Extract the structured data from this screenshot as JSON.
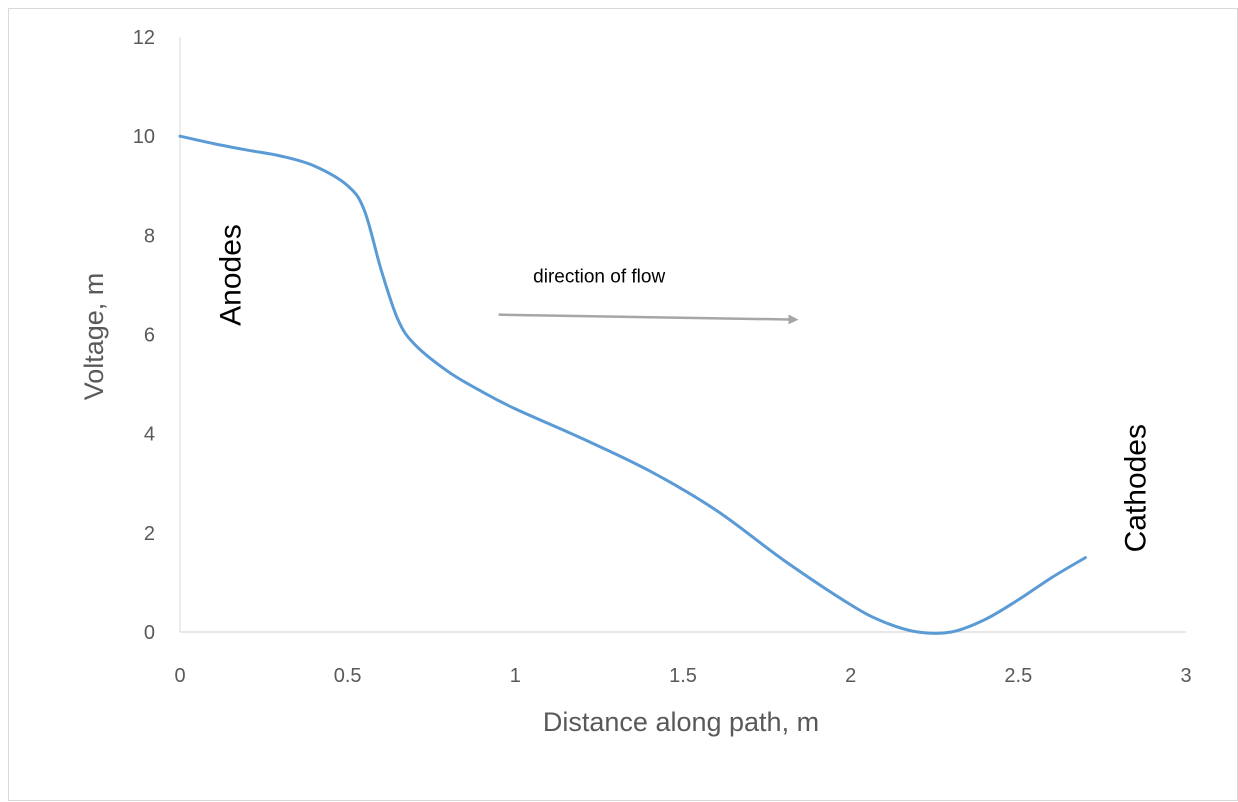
{
  "chart_data": {
    "type": "line",
    "title": "",
    "xlabel": "Distance along path, m",
    "ylabel": "Voltage, m",
    "xlim": [
      0,
      3
    ],
    "ylim": [
      0,
      12
    ],
    "x_ticks": [
      0,
      0.5,
      1,
      1.5,
      2,
      2.5,
      3
    ],
    "x_tick_labels": [
      "0",
      "0.5",
      "1",
      "1.5",
      "2",
      "2.5",
      "3"
    ],
    "y_ticks": [
      0,
      2,
      4,
      6,
      8,
      10,
      12
    ],
    "y_tick_labels": [
      "0",
      "2",
      "4",
      "6",
      "8",
      "10",
      "12"
    ],
    "grid": false,
    "legend": "none",
    "series": [
      {
        "color": "#5b9bd5",
        "x": [
          0,
          0.1,
          0.2,
          0.3,
          0.4,
          0.5,
          0.55,
          0.6,
          0.65,
          0.7,
          0.8,
          0.9,
          1.0,
          1.2,
          1.4,
          1.6,
          1.8,
          2.0,
          2.1,
          2.2,
          2.3,
          2.4,
          2.5,
          2.6,
          2.7
        ],
        "y": [
          10.0,
          9.85,
          9.72,
          9.6,
          9.4,
          9.0,
          8.5,
          7.3,
          6.3,
          5.8,
          5.25,
          4.85,
          4.5,
          3.9,
          3.25,
          2.45,
          1.45,
          0.55,
          0.2,
          0.0,
          0.0,
          0.25,
          0.65,
          1.1,
          1.5
        ]
      }
    ],
    "annotations": {
      "anodes": {
        "text": "Anodes",
        "x": 0.15,
        "y": 7.2
      },
      "cathodes": {
        "text": "Cathodes",
        "x": 2.85,
        "y": 2.9
      },
      "flow_label": {
        "text": "direction of flow",
        "x": 1.25,
        "y": 7.05
      },
      "flow_arrow": {
        "x_start": 0.95,
        "x_end": 1.85,
        "y_start": 6.4,
        "y_end": 6.3,
        "color": "#a6a6a6"
      }
    }
  }
}
